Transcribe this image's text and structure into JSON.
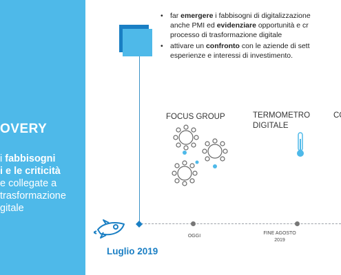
{
  "left_panel": {
    "title": "OVERY",
    "line1_plain": "i ",
    "line1_bold": "fabbisogni",
    "line2_bold": "i e le criticità",
    "line3": "e collegate a",
    "line4": "trasformazione",
    "line5": "gitale"
  },
  "bullets": [
    {
      "parts": [
        "far ",
        "emergere",
        " i fabbisogni di digitalizzazione"
      ],
      "cont": [
        "anche PMI ed ",
        "evidenziare",
        " opportunità e cr"
      ],
      "cont2": "processo di trasformazione digitale"
    },
    {
      "parts": [
        "attivare un ",
        "confronto",
        " con le aziende di sett"
      ],
      "cont": [
        "esperienze e interessi di investimento."
      ]
    }
  ],
  "sections": {
    "focus_group": "FOCUS GROUP",
    "termometro_line1": "TERMOMETRO",
    "termometro_line2": "DIGITALE",
    "partial": "CO"
  },
  "timeline": {
    "start_label": "Luglio 2019",
    "oggi": "OGGI",
    "fine_agosto_line1": "FINE AGOSTO",
    "fine_agosto_line2": "2019"
  },
  "colors": {
    "primary_blue": "#4eb9e9",
    "dark_blue": "#1a7fc4"
  },
  "icons": [
    "square-icon",
    "people-group-icon",
    "thermometer-icon",
    "rocket-icon"
  ]
}
